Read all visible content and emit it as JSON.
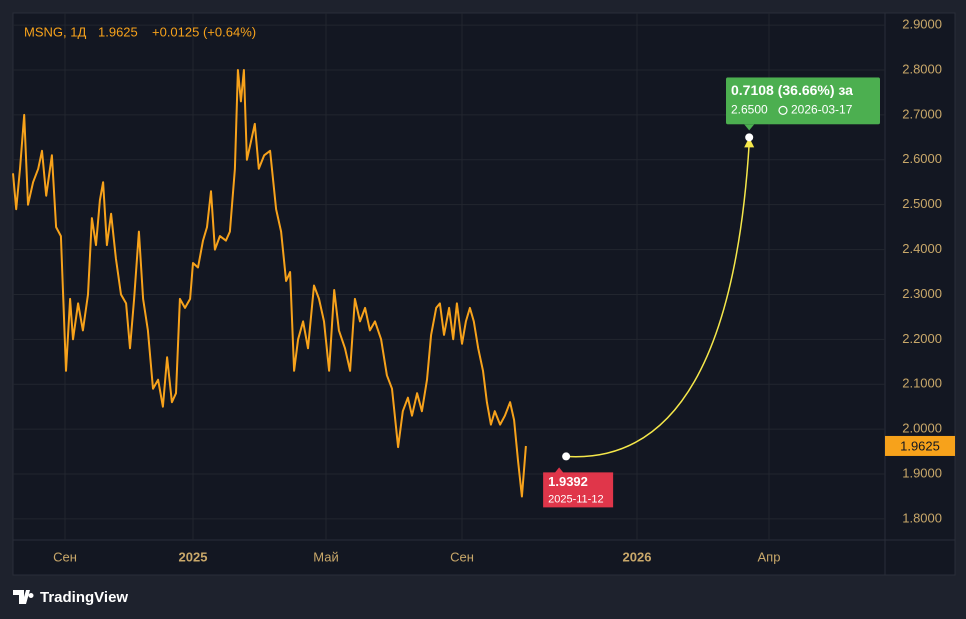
{
  "chart_data": {
    "type": "line",
    "symbol": "MSNG, 1Д",
    "last": 1.9625,
    "change_label": "+0.0125 (+0.64%)",
    "x": [
      -1.63,
      -1.53,
      -1.41,
      -1.28,
      -1.16,
      -1.0,
      -0.84,
      -0.72,
      -0.59,
      -0.41,
      -0.28,
      -0.13,
      0.03,
      0.16,
      0.25,
      0.41,
      0.56,
      0.72,
      0.84,
      0.97,
      1.09,
      1.19,
      1.31,
      1.44,
      1.59,
      1.75,
      1.91,
      2.03,
      2.16,
      2.31,
      2.44,
      2.59,
      2.75,
      2.91,
      3.06,
      3.19,
      3.34,
      3.47,
      3.59,
      3.75,
      3.91,
      4.0,
      4.15,
      4.3,
      4.42,
      4.54,
      4.66,
      4.81,
      4.99,
      5.11,
      5.26,
      5.35,
      5.44,
      5.53,
      5.62,
      5.74,
      5.86,
      5.98,
      6.14,
      6.32,
      6.5,
      6.65,
      6.8,
      6.92,
      7.04,
      7.16,
      7.31,
      7.46,
      7.64,
      7.79,
      7.94,
      8.09,
      8.24,
      8.38,
      8.56,
      8.71,
      8.85,
      9.0,
      9.15,
      9.29,
      9.44,
      9.62,
      9.79,
      9.94,
      10.12,
      10.26,
      10.41,
      10.53,
      10.68,
      10.82,
      10.97,
      11.09,
      11.24,
      11.35,
      11.47,
      11.62,
      11.74,
      11.85,
      12.0,
      12.09,
      12.18,
      12.27,
      12.37,
      12.48,
      12.57,
      12.66,
      12.75,
      12.87,
      12.98,
      13.1,
      13.19,
      13.28,
      13.37,
      13.46
    ],
    "series": [
      {
        "name": "MSNG",
        "color": "#f7a21b",
        "values": [
          2.57,
          2.49,
          2.58,
          2.7,
          2.5,
          2.55,
          2.58,
          2.62,
          2.52,
          2.61,
          2.45,
          2.43,
          2.13,
          2.29,
          2.2,
          2.28,
          2.22,
          2.3,
          2.47,
          2.41,
          2.51,
          2.55,
          2.41,
          2.48,
          2.38,
          2.3,
          2.28,
          2.18,
          2.29,
          2.44,
          2.29,
          2.22,
          2.09,
          2.11,
          2.05,
          2.16,
          2.06,
          2.08,
          2.29,
          2.27,
          2.29,
          2.37,
          2.36,
          2.42,
          2.45,
          2.53,
          2.4,
          2.43,
          2.42,
          2.44,
          2.58,
          2.8,
          2.73,
          2.8,
          2.6,
          2.64,
          2.68,
          2.58,
          2.61,
          2.62,
          2.49,
          2.44,
          2.33,
          2.35,
          2.13,
          2.2,
          2.24,
          2.18,
          2.32,
          2.29,
          2.24,
          2.13,
          2.31,
          2.22,
          2.18,
          2.13,
          2.29,
          2.24,
          2.27,
          2.22,
          2.24,
          2.2,
          2.12,
          2.09,
          1.96,
          2.04,
          2.07,
          2.03,
          2.08,
          2.04,
          2.11,
          2.21,
          2.27,
          2.28,
          2.21,
          2.27,
          2.2,
          2.28,
          2.19,
          2.24,
          2.27,
          2.24,
          2.18,
          2.13,
          2.06,
          2.01,
          2.04,
          2.01,
          2.03,
          2.06,
          2.02,
          1.93,
          1.85,
          1.9625
        ]
      }
    ],
    "xlim": [
      -1.63,
      23.2
    ],
    "xticks": [
      {
        "value": 0,
        "label": "Сен"
      },
      {
        "value": 4,
        "label": "2025"
      },
      {
        "value": 8,
        "label": "Май"
      },
      {
        "value": 12,
        "label": "Сен"
      },
      {
        "value": 16,
        "label": "2026"
      },
      {
        "value": 19,
        "label": "Апр"
      }
    ],
    "ylim": [
      1.753,
      2.927
    ],
    "yticks": [
      {
        "value": 1.8,
        "label": "1.8000"
      },
      {
        "value": 1.9,
        "label": "1.9000"
      },
      {
        "value": 2.0,
        "label": "2.0000"
      },
      {
        "value": 2.1,
        "label": "2.1000"
      },
      {
        "value": 2.2,
        "label": "2.2000"
      },
      {
        "value": 2.3,
        "label": "2.3000"
      },
      {
        "value": 2.4,
        "label": "2.4000"
      },
      {
        "value": 2.5,
        "label": "2.5000"
      },
      {
        "value": 2.6,
        "label": "2.6000"
      },
      {
        "value": 2.7,
        "label": "2.7000"
      },
      {
        "value": 2.8,
        "label": "2.8000"
      },
      {
        "value": 2.9,
        "label": "2.9000"
      }
    ],
    "grid": true,
    "projection": {
      "start": {
        "x": 14.38,
        "value": 1.9392,
        "date": "2025-11-12"
      },
      "end": {
        "x": 18.55,
        "value": 2.65,
        "value_label": "2.6500",
        "date": "2026-03-17"
      },
      "change_label": "0.7108 (36.66%) за"
    },
    "brand": "TradingView"
  }
}
